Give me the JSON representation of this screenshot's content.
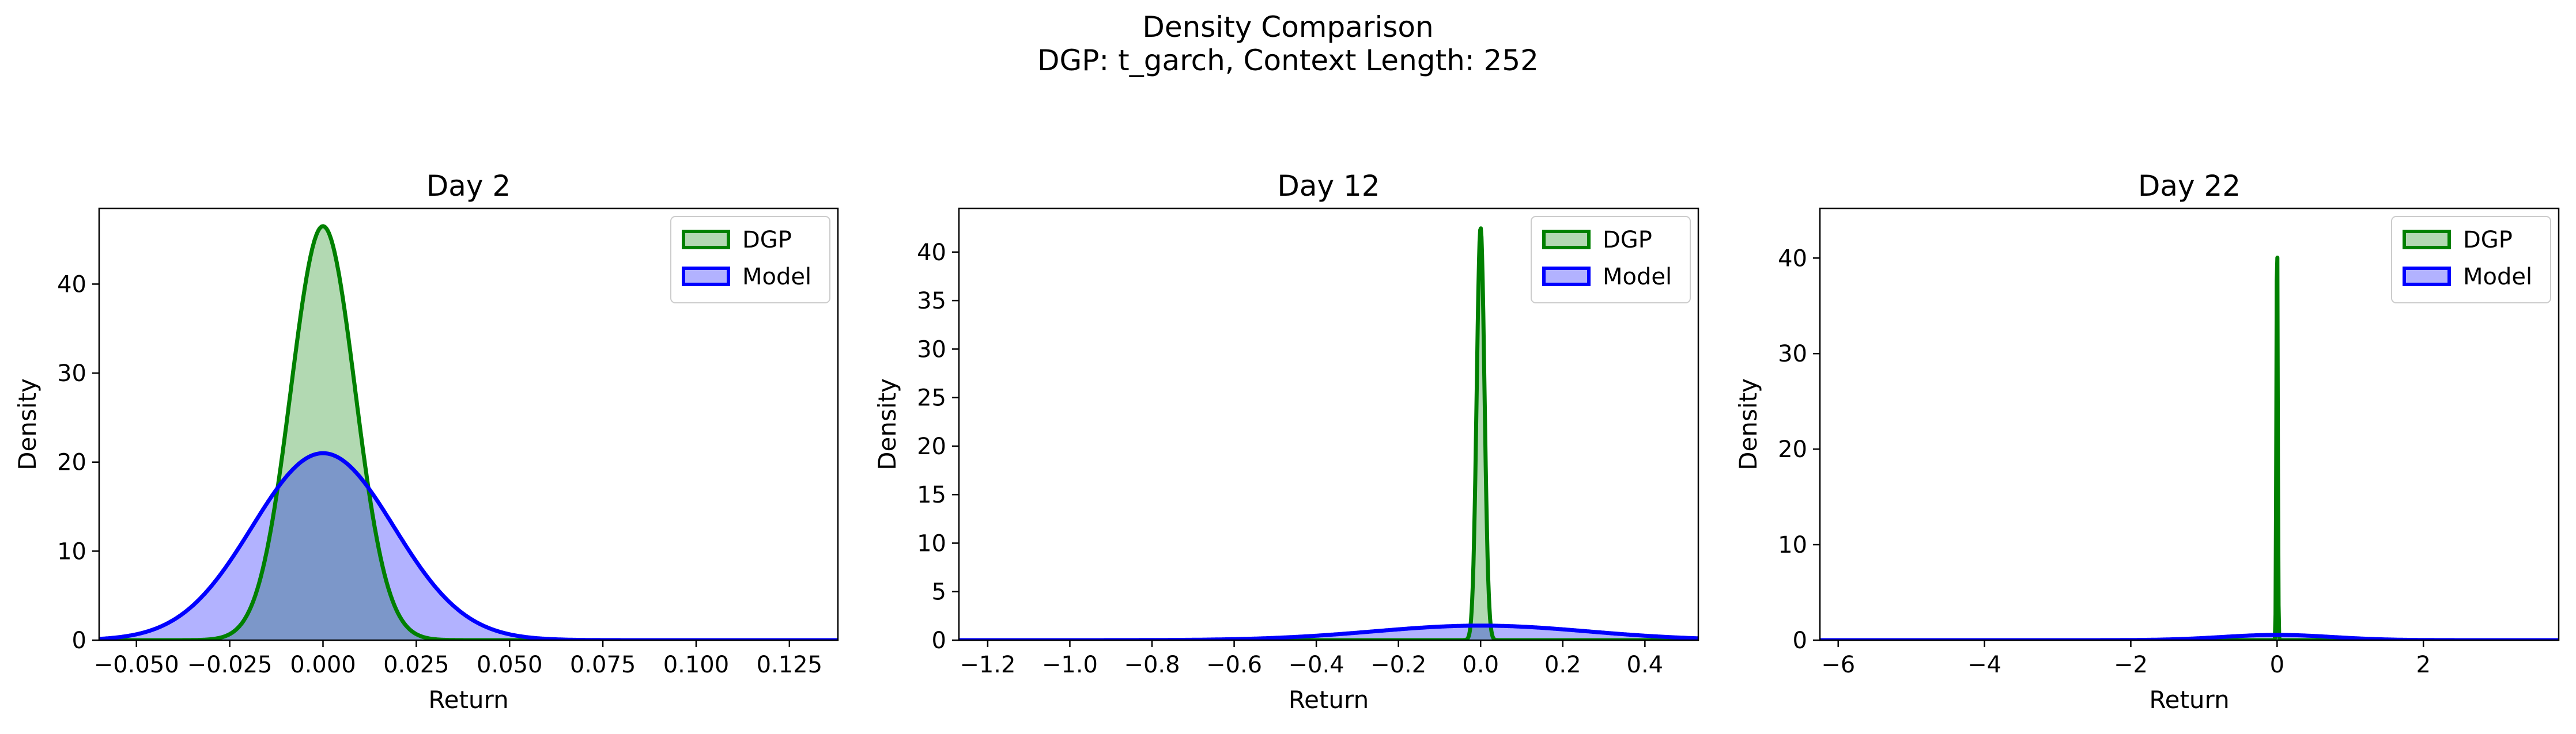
{
  "figure": {
    "title_line1": "Density Comparison",
    "title_line2": "DGP: t_garch, Context Length: 252"
  },
  "colors": {
    "dgp_line": "#008000",
    "dgp_fill": "#b2d8b2",
    "model_line": "#0000ff",
    "model_fill": "#b2b2ff"
  },
  "legend": [
    "DGP",
    "Model"
  ],
  "chart_data": [
    {
      "type": "area",
      "title": "Day 2",
      "xlabel": "Return",
      "ylabel": "Density",
      "xlim": [
        -0.06,
        0.138
      ],
      "ylim": [
        0,
        48.5
      ],
      "xticks": [
        -0.05,
        -0.025,
        0.0,
        0.025,
        0.05,
        0.075,
        0.1,
        0.125
      ],
      "xtick_labels": [
        "−0.050",
        "−0.025",
        "0.000",
        "0.025",
        "0.050",
        "0.075",
        "0.100",
        "0.125"
      ],
      "yticks": [
        0,
        10,
        20,
        30,
        40
      ],
      "ytick_labels": [
        "0",
        "10",
        "20",
        "30",
        "40"
      ],
      "legend_position": "upper right",
      "series": [
        {
          "name": "DGP",
          "peak_x": 0.0,
          "peak_y": 46.5,
          "sigma": 0.0086,
          "x_from": -0.06,
          "x_to": 0.138
        },
        {
          "name": "Model",
          "peak_x": 0.0,
          "peak_y": 21.0,
          "sigma": 0.019,
          "x_from": -0.06,
          "x_to": 0.138
        }
      ]
    },
    {
      "type": "area",
      "title": "Day 12",
      "xlabel": "Return",
      "ylabel": "Density",
      "xlim": [
        -1.27,
        0.53
      ],
      "ylim": [
        0,
        44.5
      ],
      "xticks": [
        -1.2,
        -1.0,
        -0.8,
        -0.6,
        -0.4,
        -0.2,
        0.0,
        0.2,
        0.4
      ],
      "xtick_labels": [
        "−1.2",
        "−1.0",
        "−0.8",
        "−0.6",
        "−0.4",
        "−0.2",
        "0.0",
        "0.2",
        "0.4"
      ],
      "yticks": [
        0,
        5,
        10,
        15,
        20,
        25,
        30,
        35,
        40
      ],
      "ytick_labels": [
        "0",
        "5",
        "10",
        "15",
        "20",
        "25",
        "30",
        "35",
        "40"
      ],
      "legend_position": "upper right",
      "series": [
        {
          "name": "DGP",
          "peak_x": 0.0,
          "peak_y": 42.5,
          "sigma": 0.0095,
          "x_from": -1.27,
          "x_to": 0.53
        },
        {
          "name": "Model",
          "peak_x": 0.0,
          "peak_y": 1.5,
          "sigma": 0.26,
          "x_from": -1.27,
          "x_to": 0.53
        }
      ]
    },
    {
      "type": "area",
      "title": "Day 22",
      "xlabel": "Return",
      "ylabel": "Density",
      "xlim": [
        -6.25,
        3.85
      ],
      "ylim": [
        0,
        45.2
      ],
      "xticks": [
        -6,
        -4,
        -2,
        0,
        2
      ],
      "xtick_labels": [
        "−6",
        "−4",
        "−2",
        "0",
        "2"
      ],
      "yticks": [
        0,
        10,
        20,
        30,
        40
      ],
      "ytick_labels": [
        "0",
        "10",
        "20",
        "30",
        "40"
      ],
      "legend_position": "upper right",
      "series": [
        {
          "name": "DGP",
          "peak_x": 0.0,
          "peak_y": 43.2,
          "sigma": 0.0092,
          "x_from": -6.25,
          "x_to": 3.85
        },
        {
          "name": "Model",
          "peak_x": 0.0,
          "peak_y": 0.55,
          "sigma": 0.75,
          "x_from": -6.25,
          "x_to": 3.85
        }
      ]
    }
  ]
}
